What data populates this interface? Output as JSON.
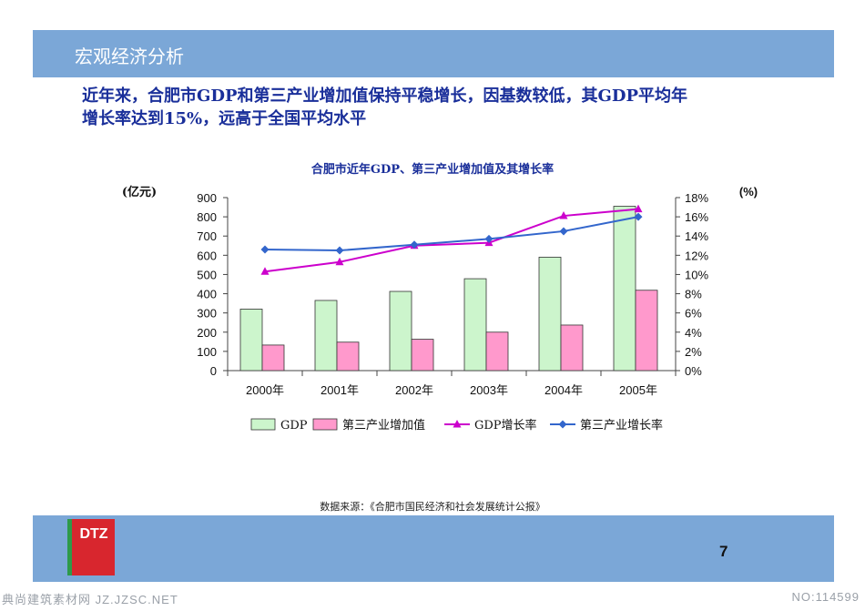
{
  "header": {
    "title": "宏观经济分析"
  },
  "headline": {
    "line1": "近年来，合肥市GDP和第三产业增加值保持平稳增长，因基数较低，其GDP平均年",
    "line2": "增长率达到15%，远高于全国平均水平"
  },
  "chart_data": {
    "type": "bar",
    "title": "合肥市近年GDP、第三产业增加值及其增长率",
    "ylabel_left": "(亿元)",
    "ylabel_right": "(%)",
    "categories": [
      "2000年",
      "2001年",
      "2002年",
      "2003年",
      "2004年",
      "2005年"
    ],
    "ylim_left": [
      0,
      900
    ],
    "yticks_left": [
      "0",
      "100",
      "200",
      "300",
      "400",
      "500",
      "600",
      "700",
      "800",
      "900"
    ],
    "ylim_right": [
      0,
      18
    ],
    "yticks_right": [
      "0%",
      "2%",
      "4%",
      "6%",
      "8%",
      "10%",
      "12%",
      "14%",
      "16%",
      "18%"
    ],
    "series": [
      {
        "name": "GDP",
        "kind": "bar",
        "axis": "left",
        "color": "#ccf5cc",
        "values": [
          320,
          365,
          412,
          478,
          590,
          855
        ]
      },
      {
        "name": "第三产业增加值",
        "kind": "bar",
        "axis": "left",
        "color": "#ff99cc",
        "values": [
          133,
          148,
          163,
          200,
          237,
          418
        ]
      },
      {
        "name": "GDP增长率",
        "kind": "line",
        "axis": "right",
        "color": "#cc00cc",
        "marker": "triangle",
        "values": [
          10.3,
          11.3,
          13.0,
          13.3,
          16.1,
          16.8
        ]
      },
      {
        "name": "第三产业增长率",
        "kind": "line",
        "axis": "right",
        "color": "#3366cc",
        "marker": "diamond",
        "values": [
          12.6,
          12.5,
          13.1,
          13.7,
          14.5,
          16.0
        ]
      }
    ],
    "grid": false,
    "legend_position": "bottom"
  },
  "source": "数据来源：《合肥市国民经济和社会发展统计公报》",
  "footer": {
    "logo_text": "DTZ",
    "page_number": "7"
  },
  "watermark": {
    "left": "典尚建筑素材网 JZ.JZSC.NET",
    "right": "NO:114599"
  }
}
